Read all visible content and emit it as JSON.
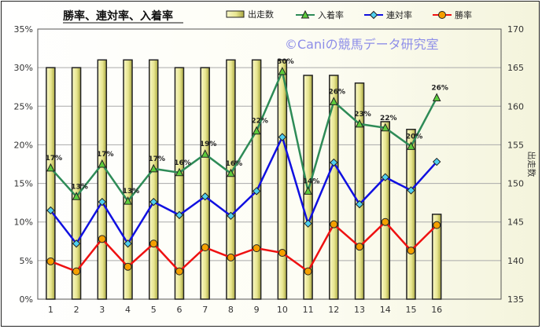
{
  "chart_data": {
    "type": "bar+line",
    "title": "勝率、連対率、入着率",
    "watermark": "©Caniの競馬データ研究室",
    "categories": [
      "1",
      "2",
      "3",
      "4",
      "5",
      "6",
      "7",
      "8",
      "9",
      "10",
      "11",
      "12",
      "13",
      "14",
      "15",
      "16"
    ],
    "y_left": {
      "min": 0,
      "max": 35,
      "step": 5,
      "unit": "%"
    },
    "y_right": {
      "min": 135,
      "max": 170,
      "step": 5,
      "label": "出走数"
    },
    "bars": {
      "name": "出走数",
      "axis": "right",
      "color": "#e8e690",
      "values": [
        165,
        165,
        166,
        166,
        166,
        165,
        165,
        166,
        166,
        166,
        164,
        164,
        163,
        158,
        157,
        146
      ]
    },
    "series": [
      {
        "name": "入着率",
        "axis": "left",
        "color": "#2e8b57",
        "marker": "triangle",
        "marker_fill": "#5ccc3c",
        "values": [
          17.0,
          13.3,
          17.5,
          12.7,
          16.9,
          16.4,
          18.8,
          16.3,
          21.8,
          29.5,
          14.0,
          25.6,
          22.7,
          22.2,
          19.8,
          26.1
        ],
        "labels": [
          "17%",
          "13%",
          "17%",
          "13%",
          "17%",
          "16%",
          "19%",
          "16%",
          "22%",
          "30%",
          "14%",
          "26%",
          "23%",
          "22%",
          "20%",
          "26%"
        ]
      },
      {
        "name": "連対率",
        "axis": "left",
        "color": "#1010e0",
        "marker": "diamond",
        "marker_fill": "#4fd0f0",
        "values": [
          11.5,
          7.2,
          12.6,
          7.2,
          12.6,
          10.9,
          13.3,
          10.8,
          14.0,
          21.0,
          9.8,
          17.7,
          12.3,
          15.8,
          14.1,
          17.8
        ]
      },
      {
        "name": "勝率",
        "axis": "left",
        "color": "#ee1111",
        "marker": "circle",
        "marker_fill": "#f5a000",
        "values": [
          4.9,
          3.6,
          7.8,
          4.2,
          7.2,
          3.6,
          6.7,
          5.4,
          6.6,
          6.0,
          3.6,
          9.7,
          6.8,
          10.0,
          6.3,
          9.6
        ]
      }
    ],
    "legend_position": "top"
  }
}
